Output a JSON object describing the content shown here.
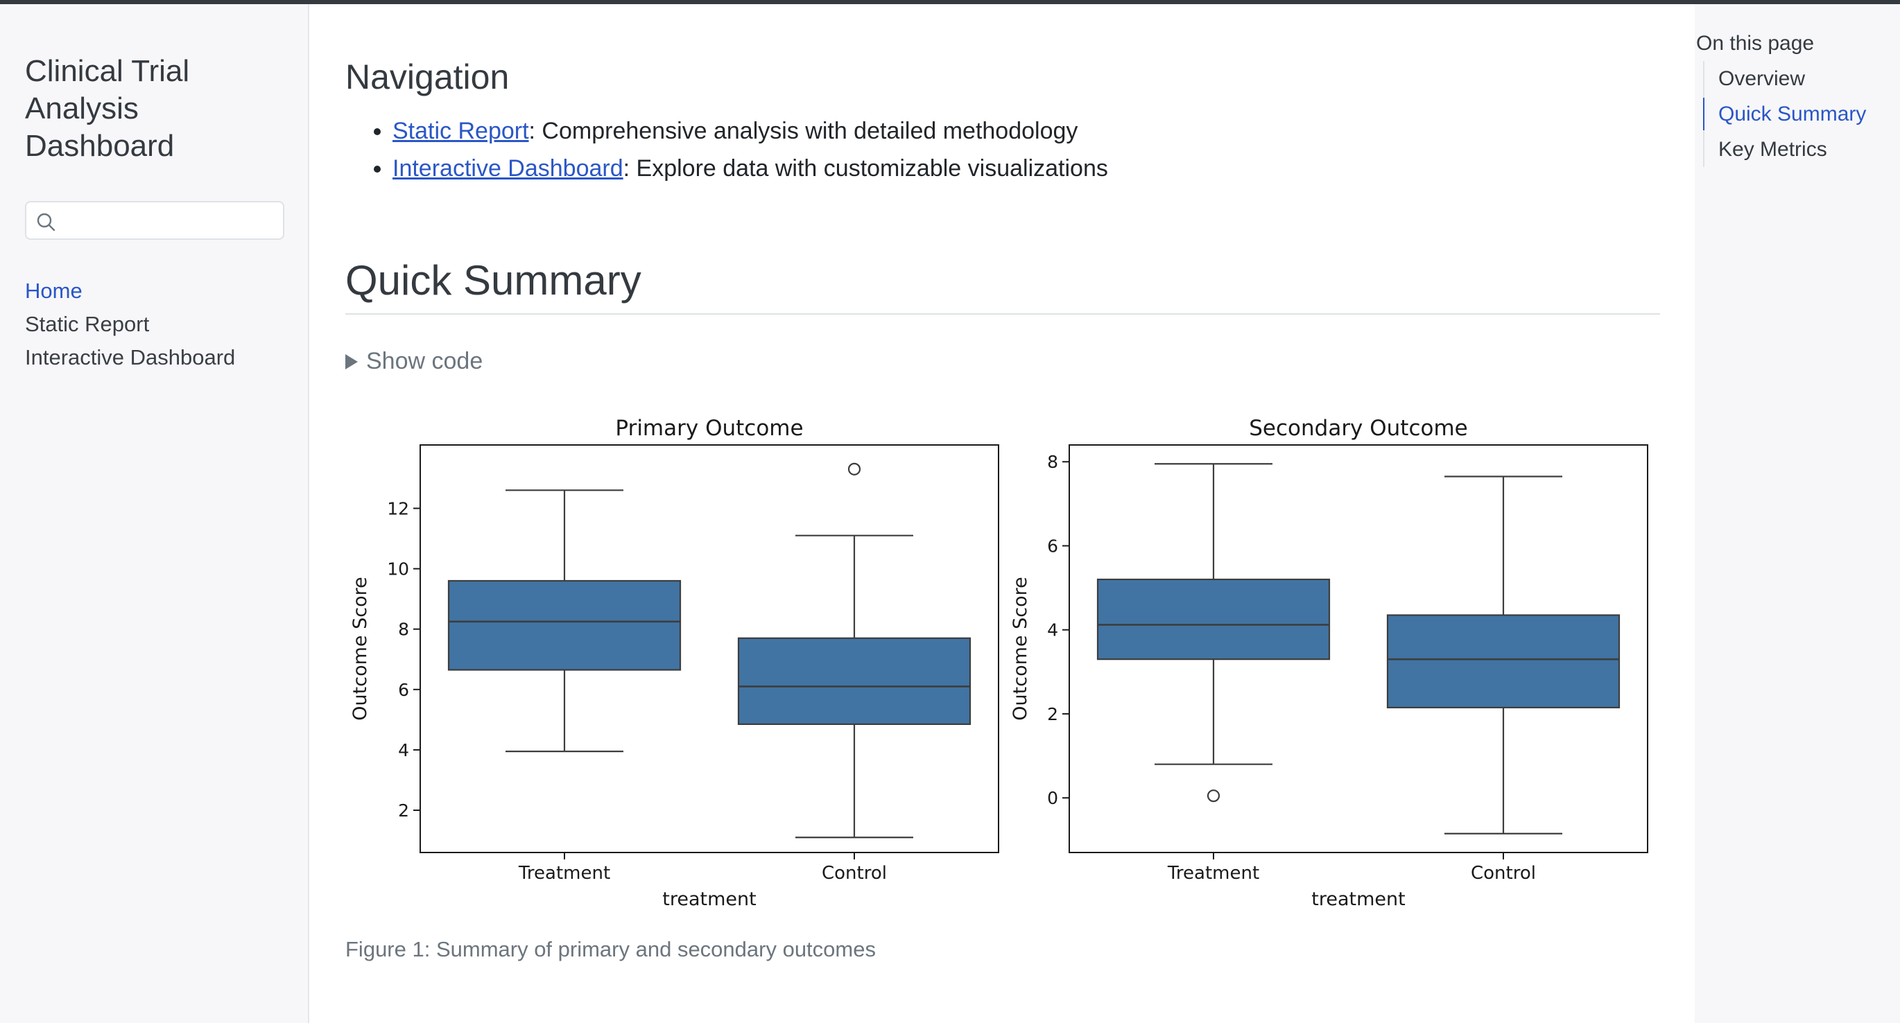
{
  "sidebar": {
    "site_title": "Clinical Trial Analysis Dashboard",
    "search": {
      "value": "",
      "placeholder": ""
    },
    "nav": [
      {
        "label": "Home",
        "active": true
      },
      {
        "label": "Static Report",
        "active": false
      },
      {
        "label": "Interactive Dashboard",
        "active": false
      }
    ]
  },
  "main": {
    "navigation_heading": "Navigation",
    "links": [
      {
        "link_text": "Static Report",
        "description": ": Comprehensive analysis with detailed methodology"
      },
      {
        "link_text": "Interactive Dashboard",
        "description": ": Explore data with customizable visualizations"
      }
    ],
    "summary_heading": "Quick Summary",
    "show_code": "Show code",
    "caption": "Figure 1: Summary of primary and secondary outcomes"
  },
  "toc": {
    "title": "On this page",
    "items": [
      {
        "label": "Overview",
        "active": false
      },
      {
        "label": "Quick Summary",
        "active": true
      },
      {
        "label": "Key Metrics",
        "active": false
      }
    ]
  },
  "colors": {
    "box_fill": "#4174a3",
    "box_line": "#3d3d3d",
    "link": "#2a56c6"
  },
  "chart_data": [
    {
      "type": "boxplot",
      "title": "Primary Outcome",
      "xlabel": "treatment",
      "ylabel": "Outcome Score",
      "ylim": [
        0.6,
        14.1
      ],
      "yticks": [
        2,
        4,
        6,
        8,
        10,
        12
      ],
      "categories": [
        "Treatment",
        "Control"
      ],
      "boxes": [
        {
          "category": "Treatment",
          "whisker_low": 3.95,
          "q1": 6.65,
          "median": 8.25,
          "q3": 9.6,
          "whisker_high": 12.6,
          "outliers": []
        },
        {
          "category": "Control",
          "whisker_low": 1.1,
          "q1": 4.85,
          "median": 6.1,
          "q3": 7.7,
          "whisker_high": 11.1,
          "outliers": [
            13.3
          ]
        }
      ],
      "grid": false,
      "legend": "none"
    },
    {
      "type": "boxplot",
      "title": "Secondary Outcome",
      "xlabel": "treatment",
      "ylabel": "Outcome Score",
      "ylim": [
        -1.3,
        8.4
      ],
      "yticks": [
        0,
        2,
        4,
        6,
        8
      ],
      "categories": [
        "Treatment",
        "Control"
      ],
      "boxes": [
        {
          "category": "Treatment",
          "whisker_low": 0.8,
          "q1": 3.3,
          "median": 4.12,
          "q3": 5.2,
          "whisker_high": 7.95,
          "outliers": [
            0.05
          ]
        },
        {
          "category": "Control",
          "whisker_low": -0.85,
          "q1": 2.15,
          "median": 3.3,
          "q3": 4.35,
          "whisker_high": 7.65,
          "outliers": []
        }
      ],
      "grid": false,
      "legend": "none"
    }
  ]
}
